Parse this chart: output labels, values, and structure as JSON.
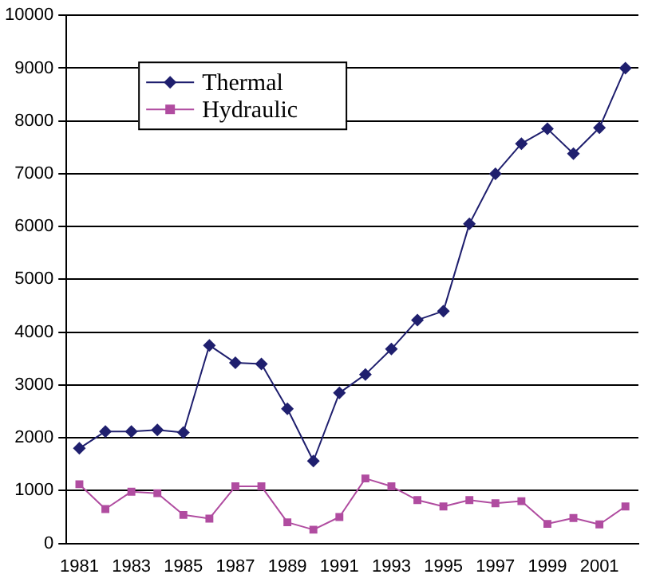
{
  "chart_data": {
    "type": "line",
    "categories": [
      "1981",
      null,
      "1983",
      null,
      "1985",
      null,
      "1987",
      null,
      "1989",
      null,
      "1991",
      null,
      "1993",
      null,
      "1995",
      null,
      "1997",
      null,
      "1999",
      null,
      "2001",
      null
    ],
    "series": [
      {
        "name": "Thermal",
        "color": "#1f1f6e",
        "marker": "diamond",
        "values": [
          1800,
          2120,
          2120,
          2150,
          2100,
          3750,
          3420,
          3400,
          2550,
          1560,
          2850,
          3200,
          3680,
          4230,
          4400,
          6050,
          7000,
          7570,
          7850,
          7380,
          7870,
          9000
        ]
      },
      {
        "name": "Hydraulic",
        "color": "#b04ca0",
        "marker": "square",
        "values": [
          1120,
          650,
          980,
          950,
          540,
          470,
          1080,
          1080,
          400,
          260,
          500,
          1230,
          1080,
          820,
          700,
          820,
          760,
          800,
          370,
          480,
          360,
          700
        ]
      }
    ],
    "ylim": [
      0,
      10000
    ],
    "yticks": [
      0,
      1000,
      2000,
      3000,
      4000,
      5000,
      6000,
      7000,
      8000,
      9000,
      10000
    ],
    "grid": "y",
    "legend": "top left"
  }
}
